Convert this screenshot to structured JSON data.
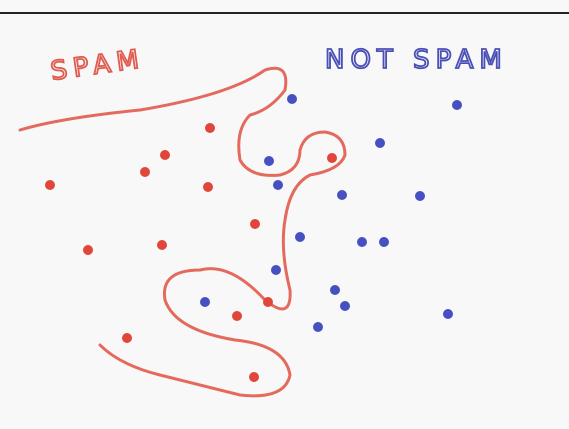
{
  "labels": {
    "left": "SPAM",
    "right": "NOT SPAM"
  }
}
